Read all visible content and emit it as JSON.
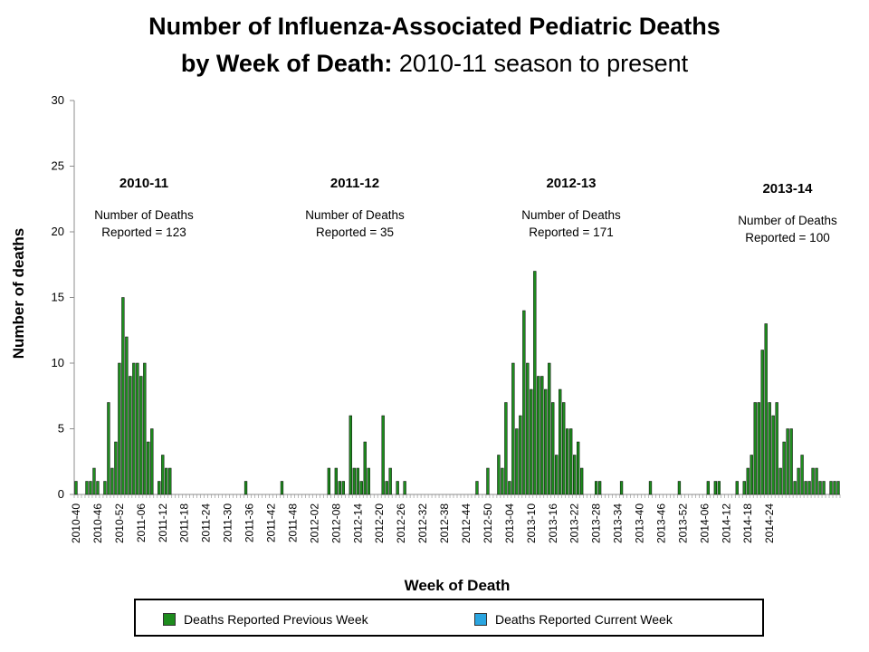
{
  "colors": {
    "previous": "#1e8c1e",
    "current": "#2aa5e0",
    "axis": "#8c8c8c"
  },
  "chart_data": {
    "type": "bar",
    "title_bold": "Number of Influenza-Associated Pediatric Deaths",
    "title_line2_bold": "by Week of Death:",
    "title_line2_normal": " 2010-11 season to present",
    "xlabel": "Week of Death",
    "ylabel": "Number of deaths",
    "ylim": [
      0,
      30
    ],
    "yticks": [
      0,
      5,
      10,
      15,
      20,
      25,
      30
    ],
    "xtick_labels": [
      "2010-40",
      "2010-46",
      "2010-52",
      "2011-06",
      "2011-12",
      "2011-18",
      "2011-24",
      "2011-30",
      "2011-36",
      "2011-42",
      "2011-48",
      "2012-02",
      "2012-08",
      "2012-14",
      "2012-20",
      "2012-26",
      "2012-32",
      "2012-38",
      "2012-44",
      "2012-50",
      "2013-04",
      "2013-10",
      "2013-16",
      "2013-22",
      "2013-28",
      "2013-34",
      "2013-40",
      "2013-46",
      "2013-52",
      "2014-06",
      "2014-12",
      "2014-18",
      "2014-24"
    ],
    "series": [
      {
        "name": "Deaths Reported Previous Week",
        "values": [
          1,
          0,
          0,
          1,
          1,
          2,
          1,
          0,
          1,
          7,
          2,
          4,
          10,
          15,
          12,
          9,
          10,
          10,
          9,
          10,
          4,
          5,
          0,
          1,
          3,
          2,
          2,
          0,
          0,
          0,
          0,
          0,
          0,
          0,
          0,
          0,
          0,
          0,
          0,
          0,
          0,
          0,
          0,
          0,
          0,
          0,
          0,
          1,
          0,
          0,
          0,
          0,
          0,
          0,
          0,
          0,
          0,
          1,
          0,
          0,
          0,
          0,
          0,
          0,
          0,
          0,
          0,
          0,
          0,
          0,
          2,
          0,
          2,
          1,
          1,
          0,
          6,
          2,
          2,
          1,
          4,
          2,
          0,
          0,
          0,
          6,
          1,
          2,
          0,
          1,
          0,
          1,
          0,
          0,
          0,
          0,
          0,
          0,
          0,
          0,
          0,
          0,
          0,
          0,
          0,
          0,
          0,
          0,
          0,
          0,
          0,
          1,
          0,
          0,
          2,
          0,
          0,
          3,
          2,
          7,
          1,
          10,
          5,
          6,
          14,
          10,
          8,
          17,
          9,
          9,
          8,
          10,
          7,
          3,
          8,
          7,
          5,
          5,
          3,
          4,
          2,
          0,
          0,
          0,
          1,
          1,
          0,
          0,
          0,
          0,
          0,
          1,
          0,
          0,
          0,
          0,
          0,
          0,
          0,
          1,
          0,
          0,
          0,
          0,
          0,
          0,
          0,
          1,
          0,
          0,
          0,
          0,
          0,
          0,
          0,
          1,
          0,
          1,
          1,
          0,
          0,
          0,
          0,
          1,
          0,
          1,
          2,
          3,
          7,
          7,
          11,
          13,
          7,
          6,
          7,
          2,
          4,
          5,
          5,
          1,
          2,
          3,
          1,
          1,
          2,
          2,
          1,
          1,
          0,
          1,
          1,
          1
        ]
      },
      {
        "name": "Deaths Reported Current Week",
        "values": []
      }
    ],
    "seasons": [
      {
        "label": "2010-11",
        "line1": "Number of Deaths",
        "line2": "Reported = 123"
      },
      {
        "label": "2011-12",
        "line1": "Number of Deaths",
        "line2": "Reported = 35"
      },
      {
        "label": "2012-13",
        "line1": "Number of Deaths",
        "line2": "Reported = 171"
      },
      {
        "label": "2013-14",
        "line1": "Number of Deaths",
        "line2": "Reported = 100"
      }
    ],
    "legend": [
      "Deaths Reported Previous Week",
      "Deaths Reported Current Week"
    ]
  }
}
